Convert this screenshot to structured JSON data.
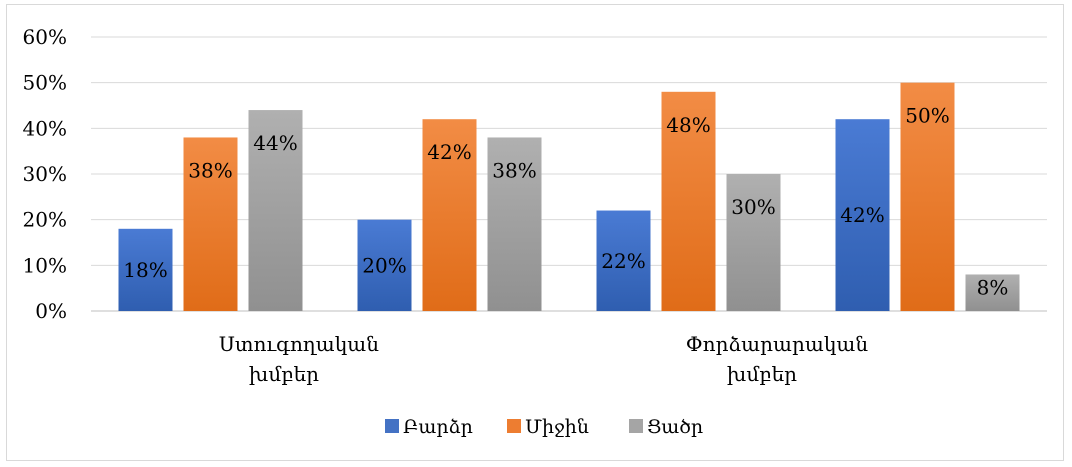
{
  "chart_data": {
    "type": "bar",
    "title": "",
    "xlabel": "",
    "ylabel": "",
    "categories": [
      [
        "Ստուգողական",
        "խմբեր"
      ],
      [],
      [
        "Փորձարարական",
        "խմբեր"
      ],
      []
    ],
    "series": [
      {
        "name": "Բարձր",
        "values": [
          18,
          20,
          22,
          42
        ],
        "labels": [
          "18%",
          "20%",
          "22%",
          "42%"
        ],
        "color": "#4472c4"
      },
      {
        "name": "Միջին",
        "values": [
          38,
          42,
          48,
          50
        ],
        "labels": [
          "38%",
          "42%",
          "48%",
          "50%"
        ],
        "color": "#ed7d31"
      },
      {
        "name": "Ցածր",
        "values": [
          44,
          38,
          30,
          8
        ],
        "labels": [
          "44%",
          "38%",
          "30%",
          "8%"
        ],
        "color": "#a5a5a5"
      }
    ],
    "y_ticks": [
      "0%",
      "10%",
      "20%",
      "30%",
      "40%",
      "50%",
      "60%"
    ],
    "ylim": [
      0,
      60
    ],
    "grid": true,
    "legend_position": "bottom"
  }
}
